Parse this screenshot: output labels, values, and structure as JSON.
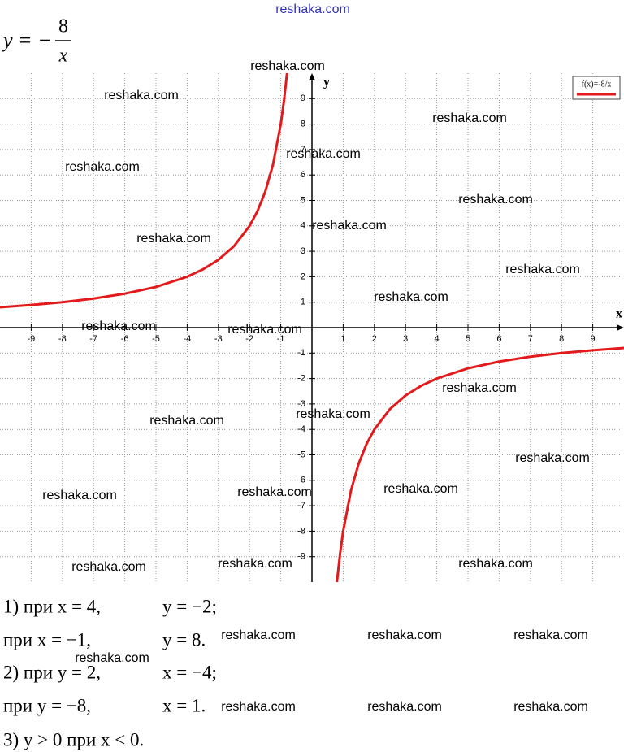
{
  "header": {
    "lhs": "y = −",
    "numerator": "8",
    "denominator": "x"
  },
  "chart_data": {
    "type": "line",
    "x_label": "x",
    "y_label": "y",
    "x": [
      -10,
      -9,
      -8,
      -7,
      -6,
      -5,
      -4,
      -3.5,
      -3,
      -2.5,
      -2,
      -1.75,
      -1.5,
      -1.25,
      -1,
      -0.9,
      -0.8,
      0,
      0.8,
      0.9,
      1,
      1.25,
      1.5,
      1.75,
      2,
      2.5,
      3,
      3.5,
      4,
      5,
      6,
      7,
      8,
      9,
      10
    ],
    "series": [
      {
        "name": "f(x)=-8/x",
        "color": "#e31a1c",
        "values": [
          0.8,
          0.889,
          1,
          1.143,
          1.333,
          1.6,
          2,
          2.286,
          2.667,
          3.2,
          4,
          4.571,
          5.333,
          6.4,
          8,
          8.889,
          10,
          null,
          -10,
          -8.889,
          -8,
          -6.4,
          -5.333,
          -4.571,
          -4,
          -3.2,
          -2.667,
          -2.286,
          -2,
          -1.6,
          -1.333,
          -1.143,
          -1,
          -0.889,
          -0.8
        ]
      }
    ],
    "xlim": [
      -10,
      10
    ],
    "ylim": [
      -10,
      10
    ],
    "xticks": [
      -9,
      -8,
      -7,
      -6,
      -5,
      -4,
      -3,
      -2,
      -1,
      1,
      2,
      3,
      4,
      5,
      6,
      7,
      8,
      9
    ],
    "yticks": [
      -9,
      -8,
      -7,
      -6,
      -5,
      -4,
      -3,
      -2,
      -1,
      1,
      2,
      3,
      4,
      5,
      6,
      7,
      8,
      9
    ],
    "grid": true,
    "legend": "top-right"
  },
  "answers": [
    [
      "1) при x = 4,",
      "y = −2;"
    ],
    [
      "при x = −1,",
      "y = 8."
    ],
    [
      "2) при y = 2,",
      "x = −4;"
    ],
    [
      "при y = −8,",
      "x = 1."
    ],
    [
      "3) y > 0 при x < 0."
    ]
  ],
  "watermarks": [
    "reshaka.com",
    "reshaka.com",
    "reshaka.com",
    "reshaka.com",
    "reshaka.com",
    "reshaka.com",
    "reshaka.com",
    "reshaka.com",
    "reshaka.com",
    "reshaka.com",
    "reshaka.com",
    "reshaka.com",
    "reshaka.com",
    "reshaka.com",
    "reshaka.com",
    "reshaka.com",
    "reshaka.com",
    "reshaka.com",
    "reshaka.com",
    "reshaka.com",
    "reshaka.com",
    "reshaka.com",
    "reshaka.com",
    "reshaka.com",
    "reshaka.com",
    "reshaka.com",
    "reshaka.com",
    "reshaka.com",
    "reshaka.com",
    "reshaka.com"
  ]
}
